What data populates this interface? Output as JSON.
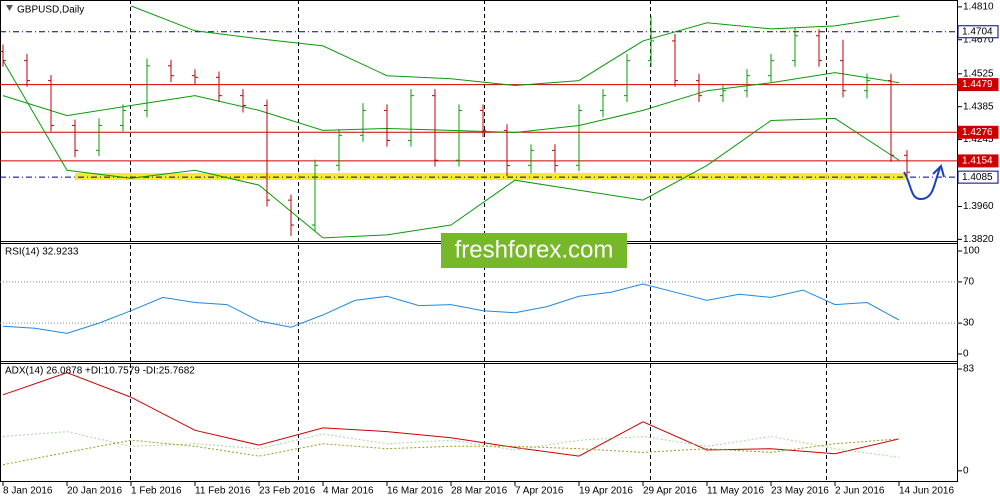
{
  "chart_data": [
    {
      "type": "ohlc",
      "title": "GBPUSD,Daily",
      "watermark": "freshforex.com",
      "up_color": "#00a000",
      "down_color": "#c00000",
      "x": [
        0,
        3,
        6,
        9,
        12,
        15,
        18,
        21,
        24,
        27,
        30,
        33,
        36,
        39,
        42,
        45,
        48,
        51,
        54,
        57,
        60,
        63,
        66,
        69,
        72,
        75,
        78,
        81,
        84,
        87,
        90,
        93,
        96,
        99,
        102,
        105,
        108,
        111,
        113
      ],
      "open": [
        1.462,
        1.4581,
        1.4496,
        1.4305,
        1.4199,
        1.4305,
        1.4369,
        1.4559,
        1.4517,
        1.451,
        1.4432,
        1.439,
        1.3987,
        1.3881,
        1.4135,
        1.4263,
        1.4369,
        1.4241,
        1.4432,
        1.4157,
        1.4369,
        1.4284,
        1.4135,
        1.4199,
        1.4135,
        1.4369,
        1.4432,
        1.4581,
        1.4665,
        1.4496,
        1.4432,
        1.4453,
        1.4517,
        1.4581,
        1.4687,
        1.4581,
        1.4453,
        1.4496,
        1.4178
      ],
      "high": [
        1.465,
        1.461,
        1.452,
        1.433,
        1.4335,
        1.4395,
        1.459,
        1.4585,
        1.4545,
        1.4535,
        1.446,
        1.4415,
        1.401,
        1.416,
        1.429,
        1.44,
        1.4395,
        1.446,
        1.446,
        1.4395,
        1.4395,
        1.431,
        1.4225,
        1.4225,
        1.4395,
        1.446,
        1.461,
        1.477,
        1.4695,
        1.4525,
        1.448,
        1.4545,
        1.461,
        1.472,
        1.4715,
        1.467,
        1.4525,
        1.4525,
        1.42
      ],
      "low": [
        1.4555,
        1.447,
        1.428,
        1.417,
        1.4175,
        1.428,
        1.434,
        1.449,
        1.448,
        1.4405,
        1.436,
        1.396,
        1.3835,
        1.3855,
        1.411,
        1.4235,
        1.4215,
        1.4215,
        1.413,
        1.413,
        1.4255,
        1.409,
        1.41,
        1.4105,
        1.411,
        1.434,
        1.4405,
        1.4555,
        1.447,
        1.4405,
        1.4405,
        1.4425,
        1.449,
        1.4555,
        1.4555,
        1.4425,
        1.442,
        1.415,
        1.4085
      ],
      "close": [
        1.4581,
        1.4496,
        1.4305,
        1.4199,
        1.4305,
        1.4369,
        1.4559,
        1.4517,
        1.451,
        1.4432,
        1.439,
        1.3987,
        1.3881,
        1.4135,
        1.4263,
        1.4369,
        1.4241,
        1.4432,
        1.4157,
        1.4369,
        1.4284,
        1.4135,
        1.4199,
        1.4135,
        1.4369,
        1.4432,
        1.4581,
        1.4665,
        1.4496,
        1.4432,
        1.4453,
        1.4517,
        1.4581,
        1.4687,
        1.4581,
        1.4453,
        1.4496,
        1.4178,
        1.4106
      ],
      "bands": {
        "color": "#0a9a0a",
        "x": [
          0,
          8,
          16,
          24,
          32,
          40,
          48,
          56,
          64,
          72,
          80,
          88,
          96,
          104,
          112
        ],
        "upper": [
          null,
          null,
          1.4814,
          1.4708,
          1.4674,
          1.4644,
          1.4517,
          1.4504,
          1.4475,
          1.4496,
          1.4665,
          1.4742,
          1.4716,
          1.4729,
          1.4771
        ],
        "middle": [
          1.4432,
          1.4347,
          1.439,
          1.4432,
          1.4369,
          1.4284,
          1.4292,
          1.4284,
          1.4275,
          1.4305,
          1.4369,
          1.4453,
          1.4487,
          1.453,
          1.4487
        ],
        "lower": [
          1.4581,
          1.4114,
          1.408,
          1.4114,
          1.4051,
          1.3826,
          1.3839,
          1.3881,
          1.4072,
          1.4029,
          1.3987,
          1.4135,
          1.4326,
          1.4335,
          1.4157
        ]
      },
      "levels": [
        {
          "value": 1.4704,
          "color": "#000080",
          "dash": true,
          "label_fill": false
        },
        {
          "value": 1.4479,
          "color": "#cc0000",
          "dash": false,
          "label_fill": true
        },
        {
          "value": 1.4276,
          "color": "#cc0000",
          "dash": false,
          "label_fill": true
        },
        {
          "value": 1.4154,
          "color": "#cc0000",
          "dash": false,
          "label_fill": true
        },
        {
          "value": 1.4085,
          "color": "#000080",
          "dash": true,
          "label_fill": false
        }
      ],
      "xlim": [
        -0.375,
        119.375
      ],
      "ylim": [
        1.3813,
        1.4835
      ],
      "yticks": [
        {
          "value": 1.481,
          "label": "1.4810"
        },
        {
          "value": 1.467,
          "label": "1.4670"
        },
        1.4525,
        1.4385,
        1.4245,
        {
          "value": 1.396,
          "label": "1.3960"
        },
        {
          "value": 1.382,
          "label": "1.3820"
        }
      ]
    },
    {
      "type": "line",
      "title": "RSI(14) 32.9233",
      "color": "#1e88e5",
      "x": [
        0,
        4,
        8,
        12,
        16,
        20,
        24,
        28,
        32,
        36,
        40,
        44,
        48,
        52,
        56,
        60,
        64,
        68,
        72,
        76,
        80,
        84,
        88,
        92,
        96,
        100,
        104,
        108,
        112
      ],
      "values": [
        27,
        25,
        20,
        30,
        42,
        55,
        50,
        48,
        32,
        26,
        38,
        52,
        56,
        47,
        48,
        42,
        40,
        46,
        56,
        60,
        68,
        60,
        52,
        58,
        55,
        62,
        48,
        50,
        33
      ],
      "dotted_levels": [
        70,
        30
      ],
      "xlim": [
        -0.375,
        119.375
      ],
      "ylim": [
        -6.8,
        106.8
      ],
      "yticks": [
        100,
        70,
        30,
        0
      ]
    },
    {
      "type": "line",
      "title": "ADX(14) 26.0878 +DI:10.7579 -DI:25.7682",
      "x": [
        0,
        8,
        16,
        24,
        32,
        40,
        48,
        56,
        64,
        72,
        80,
        88,
        96,
        104,
        112
      ],
      "series": [
        {
          "color": "#cc0000",
          "dash": false,
          "values": [
            62,
            80,
            60,
            33,
            21,
            35,
            32,
            27,
            19,
            12,
            40,
            17,
            18,
            14,
            26
          ]
        },
        {
          "color": "#a8d8a0",
          "dash": true,
          "values": [
            28,
            32,
            20,
            22,
            18,
            30,
            22,
            25,
            17,
            25,
            28,
            20,
            28,
            18,
            11
          ]
        },
        {
          "color": "#9a9a20",
          "dash": true,
          "values": [
            5,
            15,
            25,
            20,
            12,
            22,
            18,
            20,
            20,
            18,
            15,
            18,
            15,
            22,
            26
          ]
        }
      ],
      "xlim": [
        -0.375,
        119.375
      ],
      "ylim": [
        -8.3,
        87.1
      ],
      "yticks": [
        83,
        0
      ],
      "xticks": [
        {
          "value": 0,
          "label": "8 Jan 2016"
        },
        {
          "value": 8,
          "label": "20 Jan 2016"
        },
        {
          "value": 16,
          "label": "1 Feb 2016"
        },
        {
          "value": 24,
          "label": "11 Feb 2016"
        },
        {
          "value": 32,
          "label": "23 Feb 2016"
        },
        {
          "value": 40,
          "label": "4 Mar 2016"
        },
        {
          "value": 48,
          "label": "16 Mar 2016"
        },
        {
          "value": 56,
          "label": "28 Mar 2016"
        },
        {
          "value": 64,
          "label": "7 Apr 2016"
        },
        {
          "value": 72,
          "label": "19 Apr 2016"
        },
        {
          "value": 80,
          "label": "29 Apr 2016"
        },
        {
          "value": 88,
          "label": "11 May 2016"
        },
        {
          "value": 96,
          "label": "23 May 2016"
        },
        {
          "value": 104,
          "label": "2 Jun 2016"
        },
        {
          "value": 112,
          "label": "14 Jun 2016"
        }
      ]
    }
  ]
}
